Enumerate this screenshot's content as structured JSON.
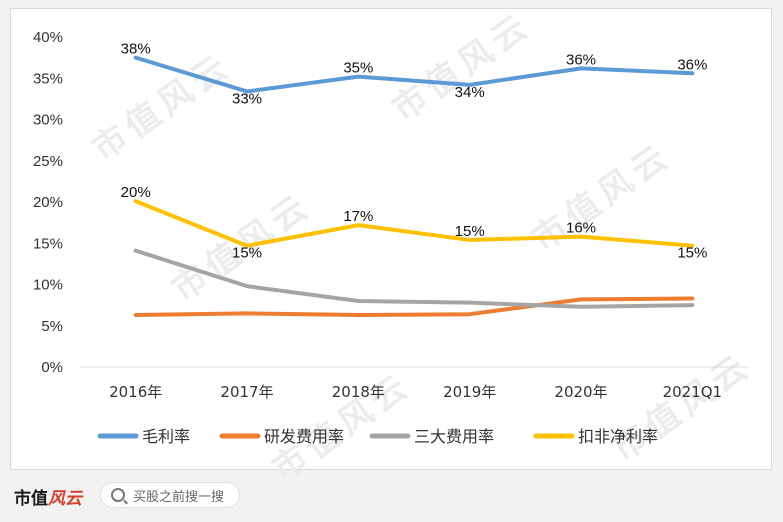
{
  "chart_data": {
    "type": "line",
    "categories": [
      "2016年",
      "2017年",
      "2018年",
      "2019年",
      "2020年",
      "2021Q1"
    ],
    "ylim": [
      0,
      40
    ],
    "yticks": [
      "0%",
      "5%",
      "10%",
      "15%",
      "20%",
      "25%",
      "30%",
      "35%",
      "40%"
    ],
    "grid": false,
    "legend_position": "bottom",
    "series": [
      {
        "name": "毛利率",
        "color": "#5b9bd5",
        "values": [
          37.5,
          33.4,
          35.2,
          34.2,
          36.2,
          35.6
        ],
        "labels": [
          "38%",
          "33%",
          "35%",
          "34%",
          "36%",
          "36%"
        ]
      },
      {
        "name": "研发费用率",
        "color": "#ed7d31",
        "values": [
          6.3,
          6.5,
          6.3,
          6.4,
          8.2,
          8.3
        ],
        "labels": []
      },
      {
        "name": "三大费用率",
        "color": "#a5a5a5",
        "values": [
          14.1,
          9.8,
          8.0,
          7.8,
          7.3,
          7.5
        ],
        "labels": []
      },
      {
        "name": "扣非净利率",
        "color": "#ffc000",
        "values": [
          20.1,
          14.7,
          17.2,
          15.4,
          15.8,
          14.7
        ],
        "labels": [
          "20%",
          "15%",
          "17%",
          "15%",
          "16%",
          "15%"
        ]
      }
    ]
  },
  "footer": {
    "logo_main": "市值",
    "logo_accent": "风云",
    "search_placeholder": "买股之前搜一搜"
  },
  "watermark_text": "市值风云"
}
